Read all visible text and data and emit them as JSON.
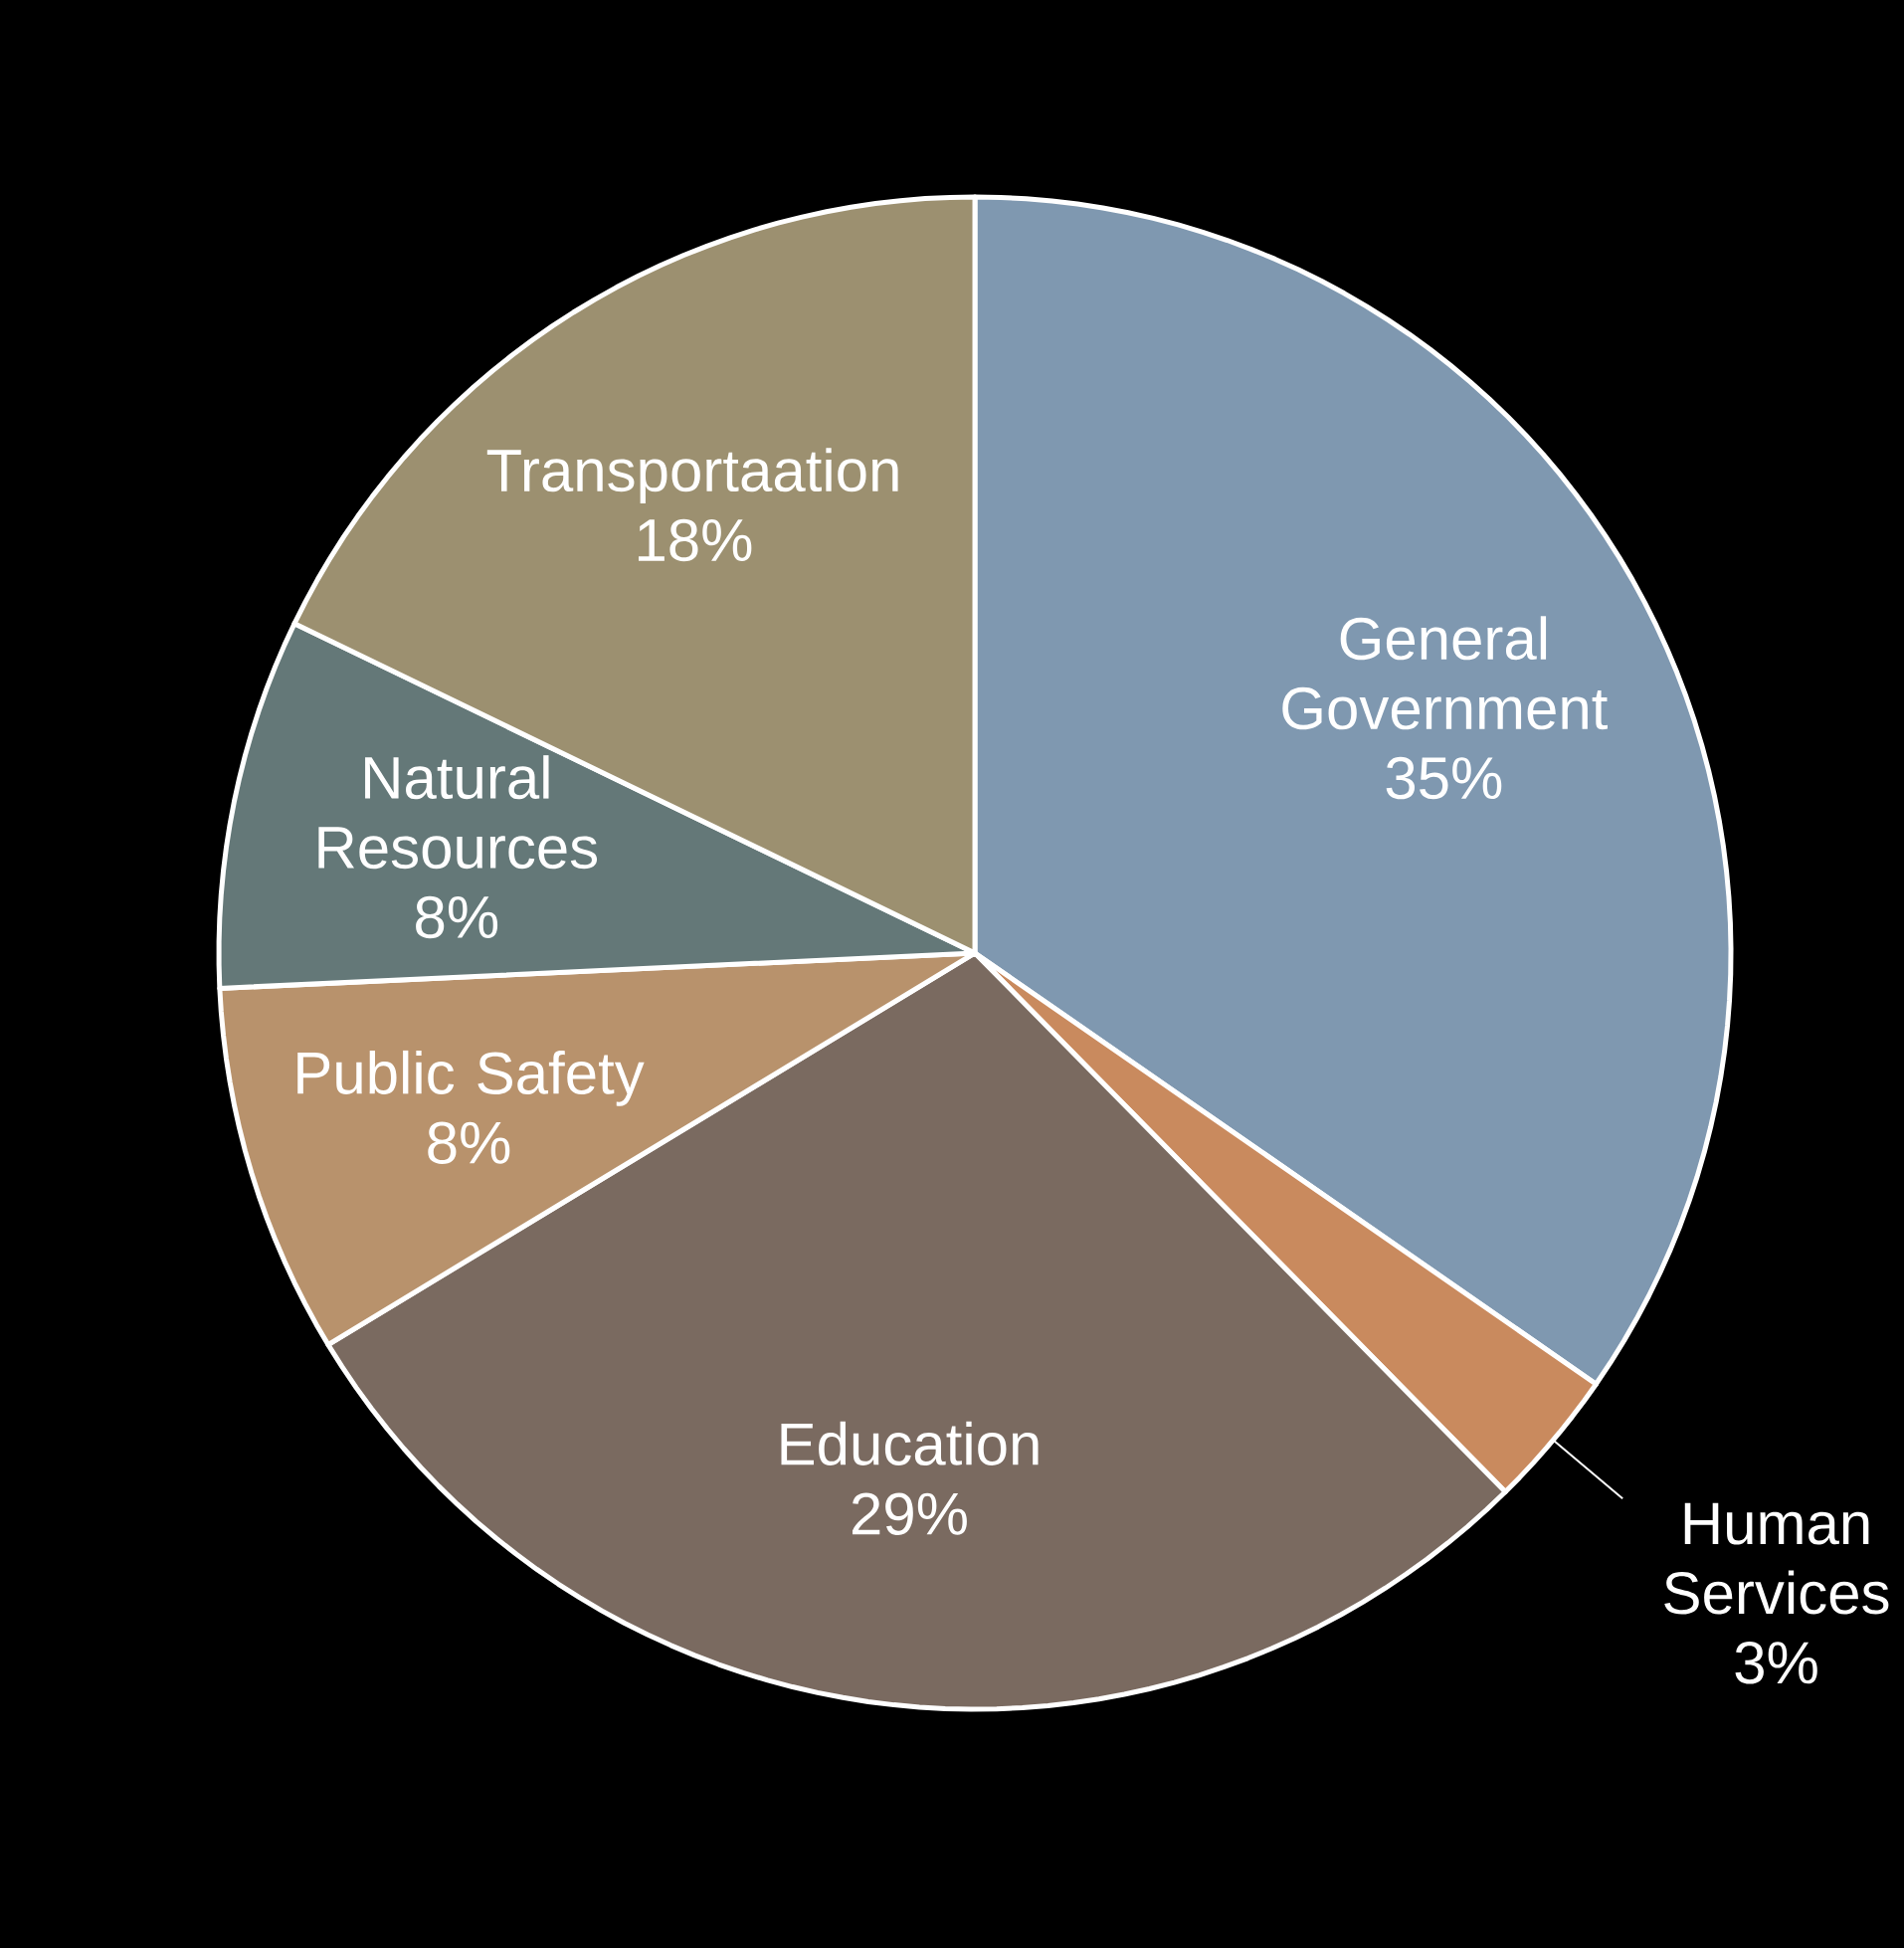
{
  "chart_data": {
    "type": "pie",
    "categories": [
      "General Government",
      "Human Services",
      "Education",
      "Public Safety",
      "Natural Resources",
      "Transportaation"
    ],
    "values": [
      35,
      3,
      29,
      8,
      8,
      18
    ],
    "value_labels": [
      "35%",
      "3%",
      "29%",
      "8%",
      "8%",
      "18%"
    ],
    "colors": [
      "#7f98b0",
      "#c98a5e",
      "#7a6a60",
      "#b8926c",
      "#647878",
      "#9c9070"
    ]
  }
}
